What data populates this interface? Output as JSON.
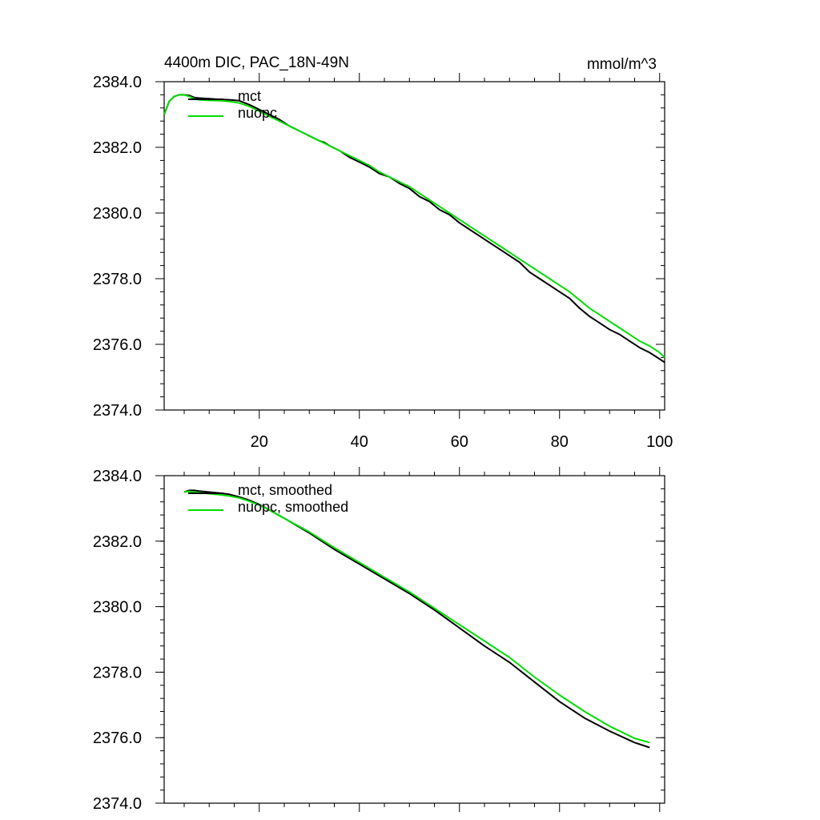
{
  "figure": {
    "title_left": "4400m DIC, PAC_18N-49N",
    "title_right": "mmol/m^3"
  },
  "colors": {
    "mct": "#000000",
    "nuopc": "#00dd00",
    "axis": "#000000"
  },
  "chart_data": [
    {
      "type": "line",
      "title": "4400m DIC, PAC_18N-49N",
      "units": "mmol/m^3",
      "xlim": [
        1,
        101
      ],
      "ylim": [
        2374,
        2384
      ],
      "xticks": [
        20,
        40,
        60,
        80,
        100
      ],
      "yticks": [
        2374,
        2376,
        2378,
        2380,
        2382,
        2384
      ],
      "ytick_labels": [
        "2374.0",
        "2376.0",
        "2378.0",
        "2380.0",
        "2382.0",
        "2384.0"
      ],
      "show_xtick_labels": true,
      "legend": "top-left",
      "grid": false,
      "series": [
        {
          "name": "mct",
          "x": [
            1,
            2,
            3,
            4,
            5,
            6,
            7,
            8,
            10,
            12,
            14,
            16,
            18,
            20,
            22,
            24,
            26,
            28,
            30,
            32,
            33,
            34,
            36,
            38,
            40,
            42,
            44,
            46,
            48,
            50,
            52,
            54,
            56,
            58,
            60,
            62,
            64,
            66,
            68,
            70,
            72,
            74,
            76,
            78,
            80,
            82,
            84,
            86,
            88,
            90,
            92,
            94,
            96,
            98,
            100,
            101
          ],
          "values": [
            2383.0,
            2383.4,
            2383.55,
            2383.6,
            2383.6,
            2383.58,
            2383.52,
            2383.5,
            2383.48,
            2383.46,
            2383.45,
            2383.42,
            2383.3,
            2383.15,
            2383.0,
            2382.85,
            2382.65,
            2382.5,
            2382.35,
            2382.2,
            2382.15,
            2382.05,
            2381.9,
            2381.7,
            2381.55,
            2381.4,
            2381.2,
            2381.1,
            2380.9,
            2380.75,
            2380.5,
            2380.35,
            2380.1,
            2379.95,
            2379.7,
            2379.5,
            2379.3,
            2379.1,
            2378.9,
            2378.7,
            2378.5,
            2378.2,
            2378.0,
            2377.8,
            2377.6,
            2377.4,
            2377.1,
            2376.85,
            2376.65,
            2376.45,
            2376.3,
            2376.1,
            2375.9,
            2375.75,
            2375.55,
            2375.45
          ]
        },
        {
          "name": "nuopc",
          "x": [
            1,
            2,
            3,
            4,
            5,
            6,
            7,
            8,
            10,
            12,
            14,
            16,
            18,
            20,
            22,
            24,
            26,
            28,
            30,
            32,
            34,
            36,
            38,
            40,
            42,
            44,
            46,
            48,
            50,
            52,
            54,
            56,
            58,
            60,
            62,
            64,
            66,
            68,
            70,
            72,
            74,
            76,
            78,
            80,
            82,
            84,
            86,
            88,
            90,
            92,
            94,
            96,
            98,
            100,
            101
          ],
          "values": [
            2383.0,
            2383.4,
            2383.55,
            2383.6,
            2383.6,
            2383.55,
            2383.48,
            2383.45,
            2383.43,
            2383.42,
            2383.4,
            2383.35,
            2383.25,
            2383.1,
            2382.95,
            2382.8,
            2382.65,
            2382.5,
            2382.35,
            2382.2,
            2382.05,
            2381.9,
            2381.75,
            2381.6,
            2381.45,
            2381.25,
            2381.1,
            2380.95,
            2380.8,
            2380.6,
            2380.4,
            2380.2,
            2380.0,
            2379.8,
            2379.6,
            2379.4,
            2379.2,
            2379.0,
            2378.8,
            2378.6,
            2378.4,
            2378.2,
            2378.0,
            2377.8,
            2377.6,
            2377.35,
            2377.1,
            2376.9,
            2376.7,
            2376.5,
            2376.3,
            2376.1,
            2375.95,
            2375.75,
            2375.6
          ]
        }
      ]
    },
    {
      "type": "line",
      "xlim": [
        1,
        101
      ],
      "ylim": [
        2374,
        2384
      ],
      "xticks": [
        20,
        40,
        60,
        80,
        100
      ],
      "yticks": [
        2374,
        2376,
        2378,
        2380,
        2382,
        2384
      ],
      "ytick_labels": [
        "2374.0",
        "2376.0",
        "2378.0",
        "2380.0",
        "2382.0",
        "2384.0"
      ],
      "show_xtick_labels": false,
      "legend": "top-left",
      "grid": false,
      "series": [
        {
          "name": "mct, smoothed",
          "x": [
            5,
            6,
            7,
            8,
            10,
            12,
            14,
            16,
            18,
            20,
            22,
            25,
            30,
            35,
            40,
            45,
            50,
            55,
            60,
            65,
            70,
            75,
            80,
            85,
            90,
            95,
            98
          ],
          "values": [
            2383.5,
            2383.55,
            2383.55,
            2383.53,
            2383.5,
            2383.47,
            2383.43,
            2383.35,
            2383.25,
            2383.12,
            2382.95,
            2382.7,
            2382.25,
            2381.75,
            2381.3,
            2380.85,
            2380.4,
            2379.9,
            2379.35,
            2378.8,
            2378.3,
            2377.7,
            2377.1,
            2376.6,
            2376.2,
            2375.85,
            2375.7
          ]
        },
        {
          "name": "nuopc, smoothed",
          "x": [
            5,
            6,
            7,
            8,
            10,
            12,
            14,
            16,
            18,
            20,
            22,
            25,
            30,
            35,
            40,
            45,
            50,
            55,
            60,
            65,
            70,
            75,
            80,
            85,
            90,
            95,
            98
          ],
          "values": [
            2383.5,
            2383.52,
            2383.5,
            2383.48,
            2383.45,
            2383.42,
            2383.38,
            2383.32,
            2383.22,
            2383.1,
            2382.95,
            2382.7,
            2382.28,
            2381.8,
            2381.35,
            2380.9,
            2380.45,
            2379.95,
            2379.45,
            2378.95,
            2378.45,
            2377.85,
            2377.3,
            2376.8,
            2376.35,
            2375.98,
            2375.85
          ]
        }
      ]
    }
  ]
}
